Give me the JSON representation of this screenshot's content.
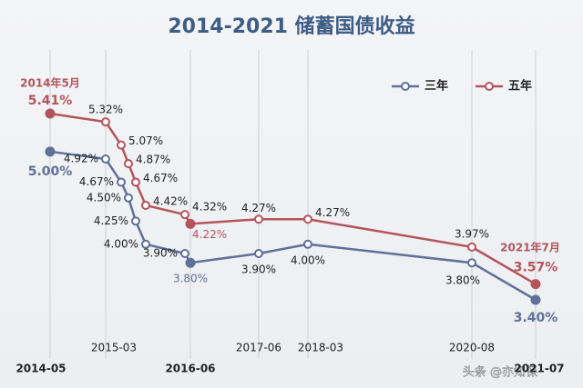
{
  "chart_data": {
    "type": "line",
    "title": "2014-2021 储蓄国债收益",
    "categories": [
      "2014-05",
      "2015-03",
      null,
      null,
      null,
      null,
      null,
      "2016-06",
      "2017-06",
      "2018-03",
      "2020-08",
      "2021-07"
    ],
    "series": [
      {
        "name": "三年",
        "color": "#5f7199",
        "values": [
          5.0,
          4.92,
          4.67,
          4.5,
          4.25,
          4.0,
          3.9,
          3.8,
          3.9,
          4.0,
          3.8,
          3.4
        ],
        "value_labels": [
          "5.00%",
          "4.92%",
          "4.67%",
          "4.50%",
          "4.25%",
          "4.00%",
          "3.90%",
          "3.80%",
          "3.90%",
          "4.00%",
          "3.80%",
          "3.40%"
        ]
      },
      {
        "name": "五年",
        "color": "#b4555c",
        "values": [
          5.41,
          5.32,
          5.07,
          4.87,
          4.67,
          4.42,
          4.32,
          4.22,
          4.27,
          4.27,
          3.97,
          3.57
        ],
        "value_labels": [
          "5.41%",
          "5.32%",
          "5.07%",
          "4.87%",
          "4.67%",
          "4.42%",
          "4.32%",
          "4.22%",
          "4.27%",
          "4.27%",
          "3.97%",
          "3.57%"
        ]
      }
    ],
    "annotations": [
      "2014年5月",
      "2021年7月"
    ],
    "legend": "top-right",
    "grid": true
  },
  "watermark": "头条 @亦知保"
}
